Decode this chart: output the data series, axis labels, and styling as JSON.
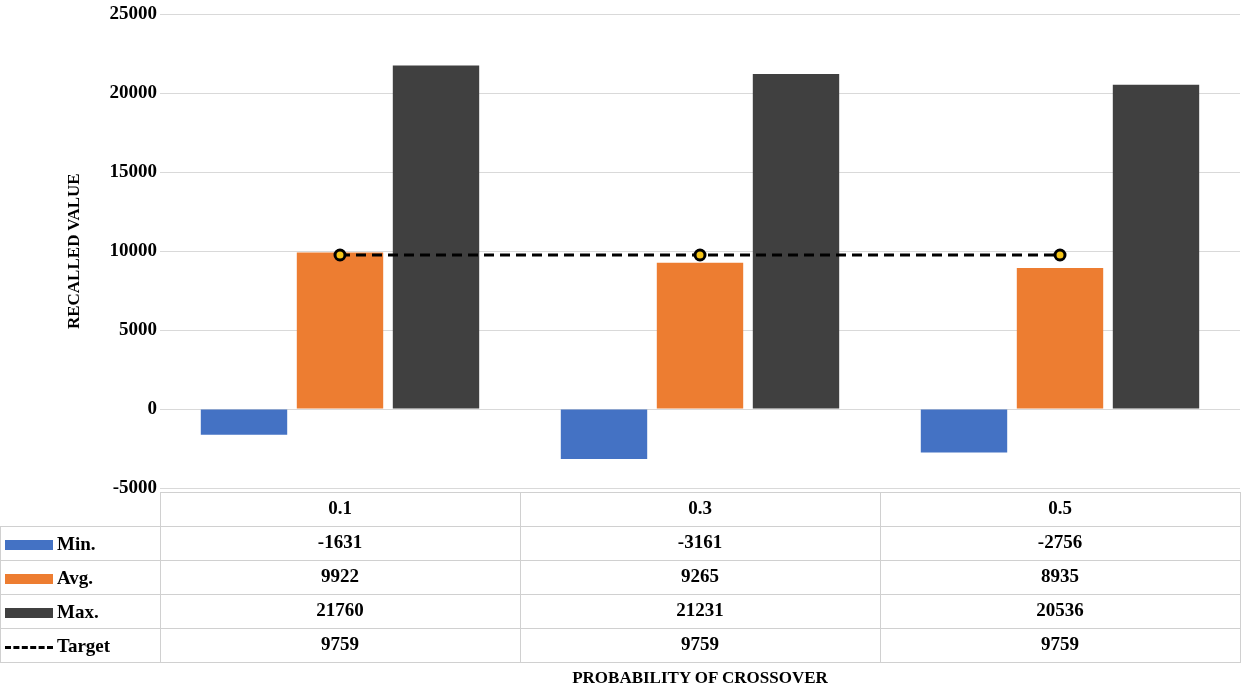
{
  "chart_data": {
    "type": "bar",
    "annotations": [
      "PROBABILITY OF CROSSOVER"
    ],
    "ylabel": "RECALLED VALUE",
    "categories": [
      "0.1",
      "0.3",
      "0.5"
    ],
    "series": [
      {
        "name": "Min.",
        "color": "#4472c4",
        "values": [
          -1631,
          -3161,
          -2756
        ]
      },
      {
        "name": "Avg.",
        "color": "#ed7d31",
        "values": [
          9922,
          9265,
          8935
        ]
      },
      {
        "name": "Max.",
        "color": "#404040",
        "values": [
          21760,
          21231,
          20536
        ]
      },
      {
        "name": "Target",
        "type": "line",
        "color": "#000000",
        "marker": "circle",
        "line_style": "dashed",
        "values": [
          9759,
          9759,
          9759
        ]
      }
    ],
    "ylim": [
      -5000,
      25000
    ],
    "yticks": [
      -5000,
      0,
      5000,
      10000,
      15000,
      20000,
      25000
    ],
    "grid": "y",
    "legend": "bottom",
    "data_labels": true
  }
}
